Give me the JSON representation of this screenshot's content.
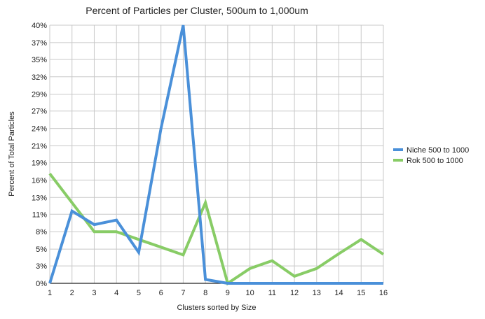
{
  "chart_data": {
    "type": "line",
    "title": "Percent of Particles per Cluster, 500um to 1,000um",
    "xlabel": "Clusters sorted by Size",
    "ylabel": "Percent of Total Particles",
    "x": [
      1,
      2,
      3,
      4,
      5,
      6,
      7,
      8,
      9,
      10,
      11,
      12,
      13,
      14,
      15,
      16
    ],
    "ylim": [
      0,
      40
    ],
    "yticks": [
      0,
      2.7,
      5.3,
      8,
      10.7,
      13.3,
      16,
      18.7,
      21.3,
      24,
      26.7,
      29.3,
      32,
      34.7,
      37.3,
      40
    ],
    "ytick_labels": [
      "0%",
      "3%",
      "5%",
      "8%",
      "11%",
      "13%",
      "16%",
      "19%",
      "21%",
      "24%",
      "27%",
      "29%",
      "32%",
      "35%",
      "37%",
      "40%"
    ],
    "grid": true,
    "legend": "right",
    "series": [
      {
        "name": "Niche 500  to  1000",
        "color": "#4a90d9",
        "values": [
          0,
          11.2,
          9.1,
          9.8,
          4.8,
          24,
          40,
          0.6,
          0,
          0,
          0,
          0,
          0,
          0,
          0,
          0
        ]
      },
      {
        "name": "Rok 500  to  1000",
        "color": "#88cc66",
        "values": [
          17,
          12.5,
          8,
          8,
          6.8,
          5.6,
          4.4,
          12.5,
          0,
          2.3,
          3.5,
          1.1,
          2.3,
          4.6,
          6.8,
          4.5
        ]
      }
    ]
  }
}
